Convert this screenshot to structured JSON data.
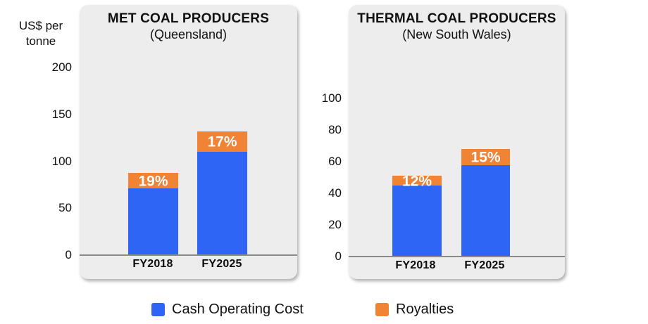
{
  "axis_unit_label": "US$ per\ntonne",
  "legend": [
    {
      "label": "Cash Operating Cost",
      "color": "#2f65f5"
    },
    {
      "label": "Royalties",
      "color": "#f18335"
    }
  ],
  "chart_data": [
    {
      "type": "bar",
      "stacked": true,
      "title": "MET COAL PRODUCERS",
      "subtitle": "(Queensland)",
      "ylabel": "US$ per tonne",
      "ylim": [
        0,
        200
      ],
      "yticks": [
        0,
        50,
        100,
        150,
        200
      ],
      "grid": false,
      "categories": [
        "FY2018",
        "FY2025"
      ],
      "series": [
        {
          "name": "Cash Operating Cost",
          "values": [
            71,
            110
          ]
        },
        {
          "name": "Royalties",
          "values": [
            17,
            22
          ]
        }
      ],
      "totals": [
        88,
        132
      ],
      "bar_labels": [
        "19%",
        "17%"
      ],
      "bar_label_meaning": "royalties share of total cost"
    },
    {
      "type": "bar",
      "stacked": true,
      "title": "THERMAL COAL PRODUCERS",
      "subtitle": "(New South Wales)",
      "ylabel": "US$ per tonne",
      "ylim": [
        0,
        100
      ],
      "yticks": [
        0,
        20,
        40,
        60,
        80,
        100
      ],
      "grid": false,
      "categories": [
        "FY2018",
        "FY2025"
      ],
      "series": [
        {
          "name": "Cash Operating Cost",
          "values": [
            45,
            58
          ]
        },
        {
          "name": "Royalties",
          "values": [
            6,
            10
          ]
        }
      ],
      "totals": [
        51,
        68
      ],
      "bar_labels": [
        "12%",
        "15%"
      ],
      "bar_label_meaning": "royalties share of total cost"
    }
  ],
  "legend_position": "bottom"
}
